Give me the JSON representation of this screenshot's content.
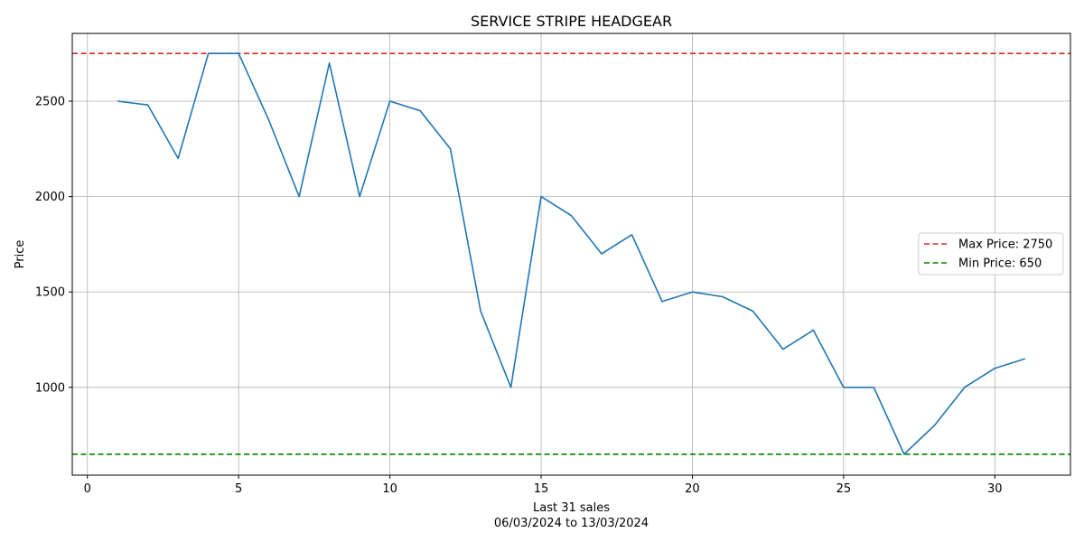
{
  "chart_data": {
    "type": "line",
    "title": "SERVICE STRIPE HEADGEAR",
    "xlabel_lines": [
      "Last 31 sales",
      "06/03/2024 to 13/03/2024"
    ],
    "ylabel": "Price",
    "xlim": [
      -0.5,
      32.5
    ],
    "ylim": [
      540,
      2855
    ],
    "xticks": [
      0,
      5,
      10,
      15,
      20,
      25,
      30
    ],
    "yticks": [
      1000,
      1500,
      2000,
      2500
    ],
    "grid": true,
    "legend_position": "center-right",
    "series": [
      {
        "color": "#1f77b4",
        "x": [
          1,
          2,
          3,
          4,
          5,
          6,
          7,
          8,
          9,
          10,
          11,
          12,
          13,
          14,
          15,
          16,
          17,
          18,
          19,
          20,
          21,
          22,
          23,
          24,
          25,
          26,
          27,
          28,
          29,
          30,
          31
        ],
        "y": [
          2500,
          2480,
          2200,
          2750,
          2750,
          2400,
          2000,
          2700,
          2000,
          2500,
          2450,
          2250,
          1400,
          1000,
          2000,
          1900,
          1700,
          1800,
          1450,
          1500,
          1475,
          1400,
          1200,
          1300,
          1000,
          1000,
          650,
          800,
          1000,
          1100,
          1150
        ]
      }
    ],
    "reference_lines": [
      {
        "label": "Max Price: 2750",
        "value": 2750,
        "color": "#d62728"
      },
      {
        "label": "Min Price: 650",
        "value": 650,
        "color": "#008000"
      }
    ]
  }
}
